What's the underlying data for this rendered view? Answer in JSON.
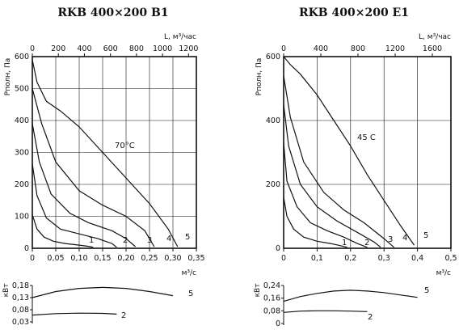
{
  "chart_data": [
    {
      "type": "line",
      "title": "RKB 400×200 B1",
      "ylabel": "Pполн, Па",
      "x_top_label": "L, м³/час",
      "x_bottom_label": "м³/с",
      "xlim": [
        0,
        0.35
      ],
      "ylim": [
        0,
        600
      ],
      "x_ticks": [
        0,
        0.05,
        0.1,
        0.15,
        0.2,
        0.25,
        0.3,
        0.35
      ],
      "x_tick_labels": [
        "0",
        "0,05",
        "0,10",
        "0,15",
        "0,20",
        "0,25",
        "0,30",
        "0,35"
      ],
      "top_ticks": [
        0,
        200,
        400,
        600,
        800,
        1000,
        1200
      ],
      "top_tick_labels": [
        "0",
        "200",
        "400",
        "600",
        "800",
        "1000",
        "1200"
      ],
      "y_ticks": [
        0,
        100,
        200,
        300,
        400,
        500,
        600
      ],
      "y_tick_labels": [
        "0",
        "100",
        "200",
        "300",
        "400",
        "500",
        "600"
      ],
      "annotation": "70°C",
      "series": [
        {
          "name": "1",
          "x": [
            0,
            0.01,
            0.025,
            0.045,
            0.07,
            0.1,
            0.12,
            0.13
          ],
          "y": [
            105,
            60,
            35,
            22,
            15,
            10,
            6,
            3
          ]
        },
        {
          "name": "2",
          "x": [
            0,
            0.01,
            0.03,
            0.06,
            0.1,
            0.14,
            0.17,
            0.18
          ],
          "y": [
            265,
            165,
            95,
            60,
            45,
            30,
            15,
            3
          ]
        },
        {
          "name": "3",
          "x": [
            0,
            0.015,
            0.04,
            0.08,
            0.12,
            0.17,
            0.2,
            0.22
          ],
          "y": [
            390,
            270,
            170,
            110,
            80,
            55,
            30,
            5
          ]
        },
        {
          "name": "4",
          "x": [
            0,
            0.02,
            0.05,
            0.1,
            0.15,
            0.2,
            0.24,
            0.26
          ],
          "y": [
            500,
            390,
            270,
            180,
            135,
            100,
            55,
            5
          ]
        },
        {
          "name": "5",
          "x": [
            0,
            0.01,
            0.03,
            0.06,
            0.1,
            0.15,
            0.2,
            0.25,
            0.29,
            0.31
          ],
          "y": [
            590,
            520,
            460,
            430,
            380,
            300,
            220,
            140,
            60,
            5
          ]
        }
      ],
      "power_chart": {
        "ylabel": "кВт",
        "xlabel": "м³/с",
        "ylim": [
          0.03,
          0.18
        ],
        "y_ticks": [
          0.18,
          0.13,
          0.08,
          0.03
        ],
        "y_tick_labels": [
          "0,18",
          "0,13",
          "0,08",
          "0,03"
        ],
        "series": [
          {
            "name": "5",
            "x": [
              0,
              0.05,
              0.1,
              0.15,
              0.2,
              0.25,
              0.3
            ],
            "y": [
              0.13,
              0.155,
              0.168,
              0.172,
              0.168,
              0.155,
              0.138
            ]
          },
          {
            "name": "2",
            "x": [
              0,
              0.05,
              0.1,
              0.15,
              0.18
            ],
            "y": [
              0.058,
              0.064,
              0.066,
              0.065,
              0.062
            ]
          }
        ]
      }
    },
    {
      "type": "line",
      "title": "RKB 400×200 E1",
      "ylabel": "Pполн, Па",
      "x_top_label": "L, м³/час",
      "x_bottom_label": "м³/с",
      "xlim": [
        0,
        0.5
      ],
      "ylim": [
        0,
        600
      ],
      "x_ticks": [
        0,
        0.1,
        0.2,
        0.3,
        0.4,
        0.5
      ],
      "x_tick_labels": [
        "0",
        "0,1",
        "0,2",
        "0,3",
        "0,4",
        "0,5"
      ],
      "top_ticks": [
        0,
        400,
        800,
        1200,
        1600
      ],
      "top_tick_labels": [
        "0",
        "400",
        "800",
        "1200",
        "1600"
      ],
      "y_ticks": [
        0,
        200,
        400,
        600
      ],
      "y_tick_labels": [
        "0",
        "200",
        "400",
        "600"
      ],
      "annotation": "45 C",
      "series": [
        {
          "name": "1",
          "x": [
            0,
            0.01,
            0.03,
            0.06,
            0.1,
            0.14,
            0.17,
            0.19
          ],
          "y": [
            160,
            100,
            60,
            35,
            22,
            15,
            8,
            3
          ]
        },
        {
          "name": "2",
          "x": [
            0,
            0.01,
            0.04,
            0.08,
            0.13,
            0.18,
            0.22,
            0.25
          ],
          "y": [
            330,
            210,
            130,
            80,
            55,
            35,
            15,
            3
          ]
        },
        {
          "name": "3",
          "x": [
            0,
            0.015,
            0.05,
            0.1,
            0.16,
            0.22,
            0.27,
            0.29
          ],
          "y": [
            450,
            320,
            200,
            130,
            85,
            50,
            20,
            3
          ]
        },
        {
          "name": "4",
          "x": [
            0,
            0.02,
            0.06,
            0.12,
            0.18,
            0.24,
            0.3,
            0.33
          ],
          "y": [
            540,
            410,
            270,
            175,
            120,
            80,
            30,
            3
          ]
        },
        {
          "name": "5",
          "x": [
            0,
            0.02,
            0.05,
            0.1,
            0.15,
            0.2,
            0.25,
            0.3,
            0.35,
            0.39
          ],
          "y": [
            600,
            575,
            545,
            480,
            400,
            320,
            230,
            150,
            70,
            10
          ]
        }
      ],
      "power_chart": {
        "ylabel": "кВт",
        "xlabel": "м³/с",
        "ylim": [
          0,
          0.24
        ],
        "y_ticks": [
          0.24,
          0.16,
          0.08,
          0
        ],
        "y_tick_labels": [
          "0,24",
          "0,16",
          "0,08",
          "0"
        ],
        "series": [
          {
            "name": "5",
            "x": [
              0,
              0.05,
              0.1,
              0.15,
              0.2,
              0.25,
              0.3,
              0.35,
              0.4
            ],
            "y": [
              0.14,
              0.17,
              0.19,
              0.205,
              0.21,
              0.205,
              0.195,
              0.18,
              0.165
            ]
          },
          {
            "name": "2",
            "x": [
              0,
              0.05,
              0.1,
              0.15,
              0.2,
              0.25
            ],
            "y": [
              0.07,
              0.078,
              0.08,
              0.08,
              0.078,
              0.075
            ]
          }
        ]
      }
    }
  ]
}
